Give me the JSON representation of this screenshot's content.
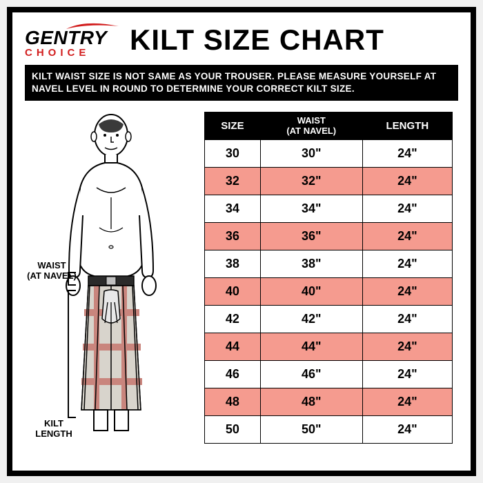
{
  "logo": {
    "top": "GENTRY",
    "bottom": "CHOICE",
    "swoosh_color": "#d21f1f",
    "bottom_color": "#d21f1f"
  },
  "title": "KILT SIZE CHART",
  "notice": "KILT WAIST SIZE IS NOT SAME AS YOUR TROUSER. PLEASE MEASURE YOURSELF AT NAVEL LEVEL IN ROUND TO DETERMINE YOUR CORRECT KILT SIZE.",
  "annotations": {
    "waist": "WAIST\n(AT NAVEL)",
    "length": "KILT\nLENGTH"
  },
  "table": {
    "type": "table",
    "alt_row_color": "#f59b8f",
    "header_bg": "#000000",
    "header_fg": "#ffffff",
    "columns": [
      "SIZE",
      "WAIST\n(AT NAVEL)",
      "LENGTH"
    ],
    "rows": [
      [
        "30",
        "30\"",
        "24\""
      ],
      [
        "32",
        "32\"",
        "24\""
      ],
      [
        "34",
        "34\"",
        "24\""
      ],
      [
        "36",
        "36\"",
        "24\""
      ],
      [
        "38",
        "38\"",
        "24\""
      ],
      [
        "40",
        "40\"",
        "24\""
      ],
      [
        "42",
        "42\"",
        "24\""
      ],
      [
        "44",
        "44\"",
        "24\""
      ],
      [
        "46",
        "46\"",
        "24\""
      ],
      [
        "48",
        "48\"",
        "24\""
      ],
      [
        "50",
        "50\"",
        "24\""
      ]
    ]
  },
  "figure": {
    "outline_color": "#000000",
    "kilt_base": "#d8d4cc",
    "kilt_stripe_h": "#c9857d",
    "kilt_stripe_v": "#c9857d",
    "skin": "#ffffff"
  }
}
